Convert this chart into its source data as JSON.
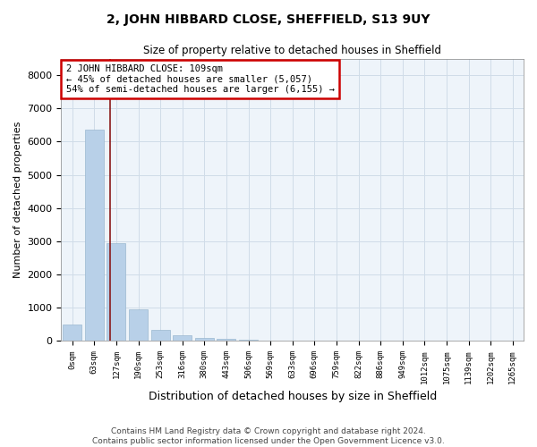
{
  "title": "2, JOHN HIBBARD CLOSE, SHEFFIELD, S13 9UY",
  "subtitle": "Size of property relative to detached houses in Sheffield",
  "xlabel": "Distribution of detached houses by size in Sheffield",
  "ylabel": "Number of detached properties",
  "footnote": "Contains HM Land Registry data © Crown copyright and database right 2024.\nContains public sector information licensed under the Open Government Licence v3.0.",
  "property_label": "2 JOHN HIBBARD CLOSE: 109sqm",
  "annotation_line1": "← 45% of detached houses are smaller (5,057)",
  "annotation_line2": "54% of semi-detached houses are larger (6,155) →",
  "bar_color": "#b8d0e8",
  "bar_edge_color": "#9ab8d0",
  "vline_color": "#8b1a1a",
  "annotation_box_edge_color": "#cc0000",
  "grid_color": "#d0dce8",
  "bg_color": "#eef4fa",
  "categories": [
    "0sqm",
    "63sqm",
    "127sqm",
    "190sqm",
    "253sqm",
    "316sqm",
    "380sqm",
    "443sqm",
    "506sqm",
    "569sqm",
    "633sqm",
    "696sqm",
    "759sqm",
    "822sqm",
    "886sqm",
    "949sqm",
    "1012sqm",
    "1075sqm",
    "1139sqm",
    "1202sqm",
    "1265sqm"
  ],
  "bar_values": [
    480,
    6350,
    2950,
    950,
    320,
    180,
    100,
    60,
    30,
    15,
    8,
    5,
    3,
    2,
    1,
    1,
    0,
    0,
    0,
    0,
    0
  ],
  "ylim": [
    0,
    8500
  ],
  "yticks": [
    0,
    1000,
    2000,
    3000,
    4000,
    5000,
    6000,
    7000,
    8000
  ],
  "vline_x": 1.73,
  "fig_width": 6.0,
  "fig_height": 5.0,
  "dpi": 100
}
